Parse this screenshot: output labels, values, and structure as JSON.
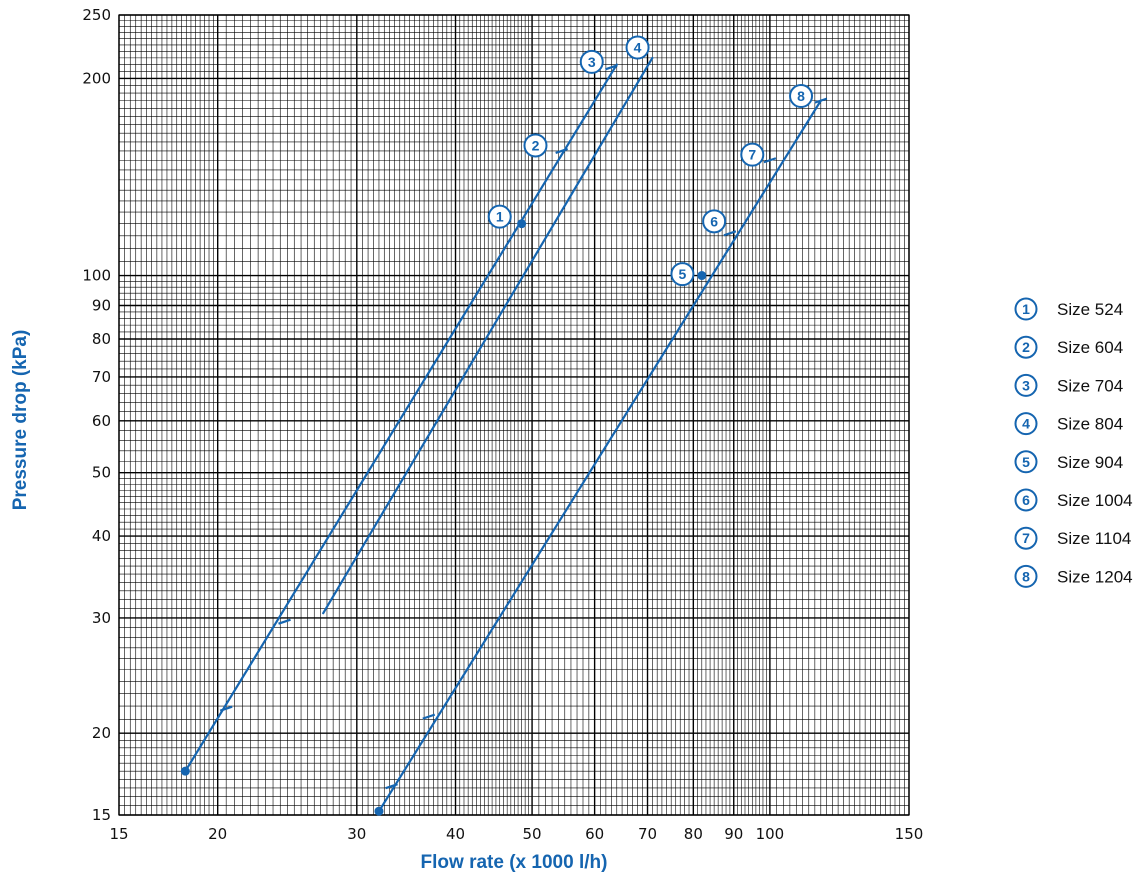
{
  "chart_data": {
    "type": "line",
    "x_scale": "log",
    "y_scale": "log",
    "xlim": [
      15,
      150
    ],
    "ylim": [
      15,
      250
    ],
    "xlabel": "Flow rate (x 1000 l/h)",
    "ylabel": "Pressure drop (kPa)",
    "x_ticks": [
      15,
      20,
      30,
      40,
      50,
      60,
      70,
      80,
      90,
      100,
      150
    ],
    "x_tick_labels": [
      "15",
      "20",
      "30",
      "40",
      "50",
      "60",
      "70",
      "80",
      "90",
      "100",
      "150"
    ],
    "y_ticks": [
      15,
      20,
      30,
      40,
      50,
      60,
      70,
      80,
      90,
      100,
      200,
      250
    ],
    "y_tick_labels": [
      "15",
      "20",
      "30",
      "40",
      "50",
      "60",
      "70",
      "80",
      "90",
      "100",
      "200",
      "250"
    ],
    "grid": true,
    "legend_position": "right",
    "line_color": "#1565b0",
    "lines": [
      {
        "id": "A",
        "points": [
          [
            18.2,
            17.5
          ],
          [
            64,
            210
          ]
        ]
      },
      {
        "id": "B",
        "points": [
          [
            27.2,
            30.5
          ],
          [
            71,
            215
          ]
        ]
      },
      {
        "id": "C",
        "points": [
          [
            32.0,
            15.2
          ],
          [
            116,
            185
          ]
        ]
      }
    ],
    "markers": [
      {
        "num": "1",
        "x": 48.5,
        "y": 120,
        "label_x": 45.5,
        "label_y": 123,
        "tick": "dot"
      },
      {
        "num": "2",
        "x": 54.5,
        "y": 155,
        "label_x": 50.5,
        "label_y": 158,
        "tick": "bar"
      },
      {
        "num": "3",
        "x": 63,
        "y": 208,
        "label_x": 59.5,
        "label_y": 212,
        "tick": "bar"
      },
      {
        "num": "4",
        "x": 71,
        "y": 215,
        "label_x": 68.0,
        "label_y": 223,
        "tick": "none"
      },
      {
        "num": "5",
        "x": 82,
        "y": 100,
        "label_x": 77.5,
        "label_y": 100.5,
        "tick": "dot"
      },
      {
        "num": "6",
        "x": 89,
        "y": 116,
        "label_x": 85.0,
        "label_y": 121,
        "tick": "bar"
      },
      {
        "num": "7",
        "x": 100,
        "y": 150,
        "label_x": 95.0,
        "label_y": 153,
        "tick": "bar"
      },
      {
        "num": "8",
        "x": 116,
        "y": 185,
        "label_x": 109.5,
        "label_y": 188,
        "tick": "bar"
      }
    ],
    "extra_ticks": [
      {
        "x": 18.2,
        "y": 17.5,
        "tick": "dot"
      },
      {
        "x": 20.5,
        "y": 21.8,
        "tick": "bar"
      },
      {
        "x": 24.3,
        "y": 29.6,
        "tick": "bar"
      },
      {
        "x": 32.0,
        "y": 15.2,
        "tick": "dot"
      },
      {
        "x": 33.2,
        "y": 16.6,
        "tick": "bar"
      },
      {
        "x": 37.0,
        "y": 21.2,
        "tick": "bar"
      }
    ],
    "legend": [
      {
        "num": "1",
        "label": "Size 524"
      },
      {
        "num": "2",
        "label": "Size 604"
      },
      {
        "num": "3",
        "label": "Size 704"
      },
      {
        "num": "4",
        "label": "Size 804"
      },
      {
        "num": "5",
        "label": "Size 904"
      },
      {
        "num": "6",
        "label": "Size 1004"
      },
      {
        "num": "7",
        "label": "Size 1104"
      },
      {
        "num": "8",
        "label": "Size 1204"
      }
    ]
  }
}
